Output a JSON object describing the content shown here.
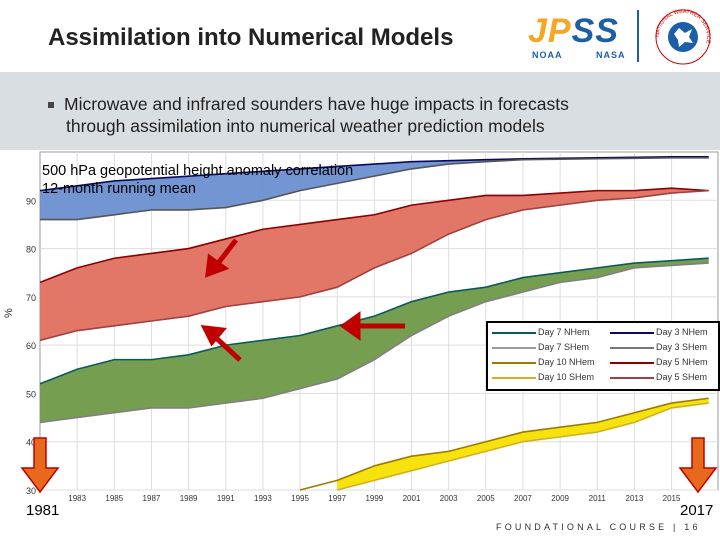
{
  "slide": {
    "title": "Assimilation into Numerical Models",
    "bullet_line1": "Microwave and infrared sounders have huge impacts in forecasts",
    "bullet_line2": "through assimilation into numerical weather prediction models",
    "footer": "FOUNDATIONAL COURSE | 16",
    "year_start": "1981",
    "year_end": "2017"
  },
  "logos": {
    "jpss_main": "JP",
    "jpss_ss": "SS",
    "jpss_noaa": "NOAA",
    "jpss_nasa": "NASA",
    "nws_ring": "NATIONAL WEATHER SERVICE"
  },
  "chart_data": {
    "type": "area",
    "title": "500 hPa geopotential height anomaly correlation",
    "subtitle": "12-month running mean",
    "xlabel": "",
    "ylabel": "%",
    "ylim": [
      30,
      100
    ],
    "xlim": [
      1981,
      2017.5
    ],
    "yticks": [
      30,
      40,
      50,
      60,
      70,
      80,
      90
    ],
    "xticks": [
      1983,
      1985,
      1987,
      1989,
      1991,
      1993,
      1995,
      1997,
      1999,
      2001,
      2003,
      2005,
      2007,
      2009,
      2011,
      2013,
      2015
    ],
    "x": [
      1981,
      1983,
      1985,
      1987,
      1989,
      1991,
      1993,
      1995,
      1997,
      1999,
      2001,
      2003,
      2005,
      2007,
      2009,
      2011,
      2013,
      2015,
      2017
    ],
    "series": [
      {
        "name": "Day 3 NHem",
        "color": "#0a0a5a",
        "values": [
          92,
          93,
          94,
          94.5,
          95,
          95.5,
          96,
          96.5,
          97,
          97.5,
          98,
          98.2,
          98.4,
          98.6,
          98.7,
          98.8,
          98.9,
          99,
          99
        ]
      },
      {
        "name": "Day 3 SHem",
        "color": "#555555",
        "values": [
          86,
          86,
          87,
          88,
          88,
          88.5,
          90,
          92,
          93.5,
          95,
          96.5,
          97.5,
          98,
          98.4,
          98.5,
          98.6,
          98.7,
          98.8,
          98.8
        ]
      },
      {
        "name": "Day 5 NHem",
        "color": "#8b0000",
        "values": [
          73,
          76,
          78,
          79,
          80,
          82,
          84,
          85,
          86,
          87,
          89,
          90,
          91,
          91,
          91.5,
          92,
          92,
          92.5,
          92
        ]
      },
      {
        "name": "Day 5 SHem",
        "color": "#a04040",
        "values": [
          61,
          63,
          64,
          65,
          66,
          68,
          69,
          70,
          72,
          76,
          79,
          83,
          86,
          88,
          89,
          90,
          90.5,
          91.5,
          92
        ]
      },
      {
        "name": "Day 7 NHem",
        "color": "#0a5a5a",
        "values": [
          52,
          55,
          57,
          57,
          58,
          60,
          61,
          62,
          64,
          66,
          69,
          71,
          72,
          74,
          75,
          76,
          77,
          77.5,
          78
        ]
      },
      {
        "name": "Day 7 SHem",
        "color": "#808080",
        "values": [
          44,
          45,
          46,
          47,
          47,
          48,
          49,
          51,
          53,
          57,
          62,
          66,
          69,
          71,
          73,
          74,
          76,
          76.5,
          77
        ]
      },
      {
        "name": "Day 10 NHem",
        "color": "#a07800",
        "values": [
          null,
          null,
          null,
          null,
          null,
          null,
          null,
          30,
          32,
          35,
          37,
          38,
          40,
          42,
          43,
          44,
          46,
          48,
          49
        ]
      },
      {
        "name": "Day 10 SHem",
        "color": "#d4b020",
        "values": [
          null,
          null,
          null,
          null,
          null,
          null,
          null,
          null,
          30,
          32,
          34,
          36,
          38,
          40,
          41,
          42,
          44,
          47,
          48
        ]
      }
    ],
    "fills": [
      {
        "between": [
          "Day 3 NHem",
          "Day 3 SHem"
        ],
        "color": "#6b8fcf"
      },
      {
        "between": [
          "Day 5 NHem",
          "Day 5 SHem"
        ],
        "color": "#e07060"
      },
      {
        "between": [
          "Day 7 NHem",
          "Day 7 SHem"
        ],
        "color": "#6e9948"
      },
      {
        "between": [
          "Day 10 NHem",
          "Day 10 SHem"
        ],
        "color": "#f5e000"
      }
    ],
    "legend": [
      {
        "label": "Day 7 NHem",
        "color": "#0a5a5a"
      },
      {
        "label": "Day 3 NHem",
        "color": "#0a0a5a"
      },
      {
        "label": "Day 7 SHem",
        "color": "#999999"
      },
      {
        "label": "Day 3 SHem",
        "color": "#777777"
      },
      {
        "label": "Day 10 NHem",
        "color": "#a07800"
      },
      {
        "label": "Day 5 NHem",
        "color": "#8b0000"
      },
      {
        "label": "Day 10 SHem",
        "color": "#d4b020"
      },
      {
        "label": "Day 5 SHem",
        "color": "#a04040"
      }
    ],
    "legend_position": "right",
    "annotations": [
      "red arrows marking satellite-era improvements",
      "vertical arrows marking 1981 and 2017"
    ]
  }
}
